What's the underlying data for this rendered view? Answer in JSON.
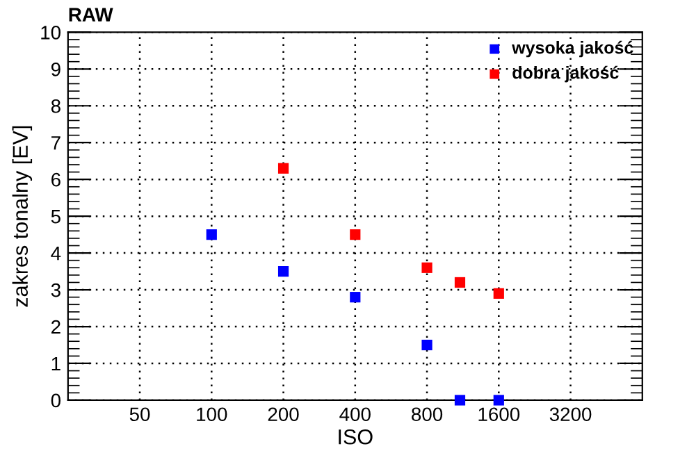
{
  "chart_data": {
    "type": "scatter",
    "title": "RAW",
    "xlabel": "ISO",
    "ylabel": "zakres tonalny [EV]",
    "log": "x",
    "xlim": [
      25,
      6400
    ],
    "xticks": [
      50,
      100,
      200,
      400,
      800,
      1600,
      3200
    ],
    "ylim": [
      0,
      10
    ],
    "yticks": [
      0,
      1,
      2,
      3,
      4,
      5,
      6,
      7,
      8,
      9,
      10
    ],
    "grid": true,
    "legend": "top right",
    "marker": "square",
    "series": [
      {
        "name": "wysoka jakość",
        "color": "#0000ff",
        "x": [
          100,
          200,
          400,
          800,
          1100,
          1600
        ],
        "values": [
          4.5,
          3.5,
          2.8,
          1.5,
          0,
          0
        ]
      },
      {
        "name": "dobra jakość",
        "color": "#ff0000",
        "x": [
          200,
          400,
          800,
          1100,
          1600
        ],
        "values": [
          6.3,
          4.5,
          3.6,
          3.2,
          2.9
        ]
      }
    ]
  }
}
